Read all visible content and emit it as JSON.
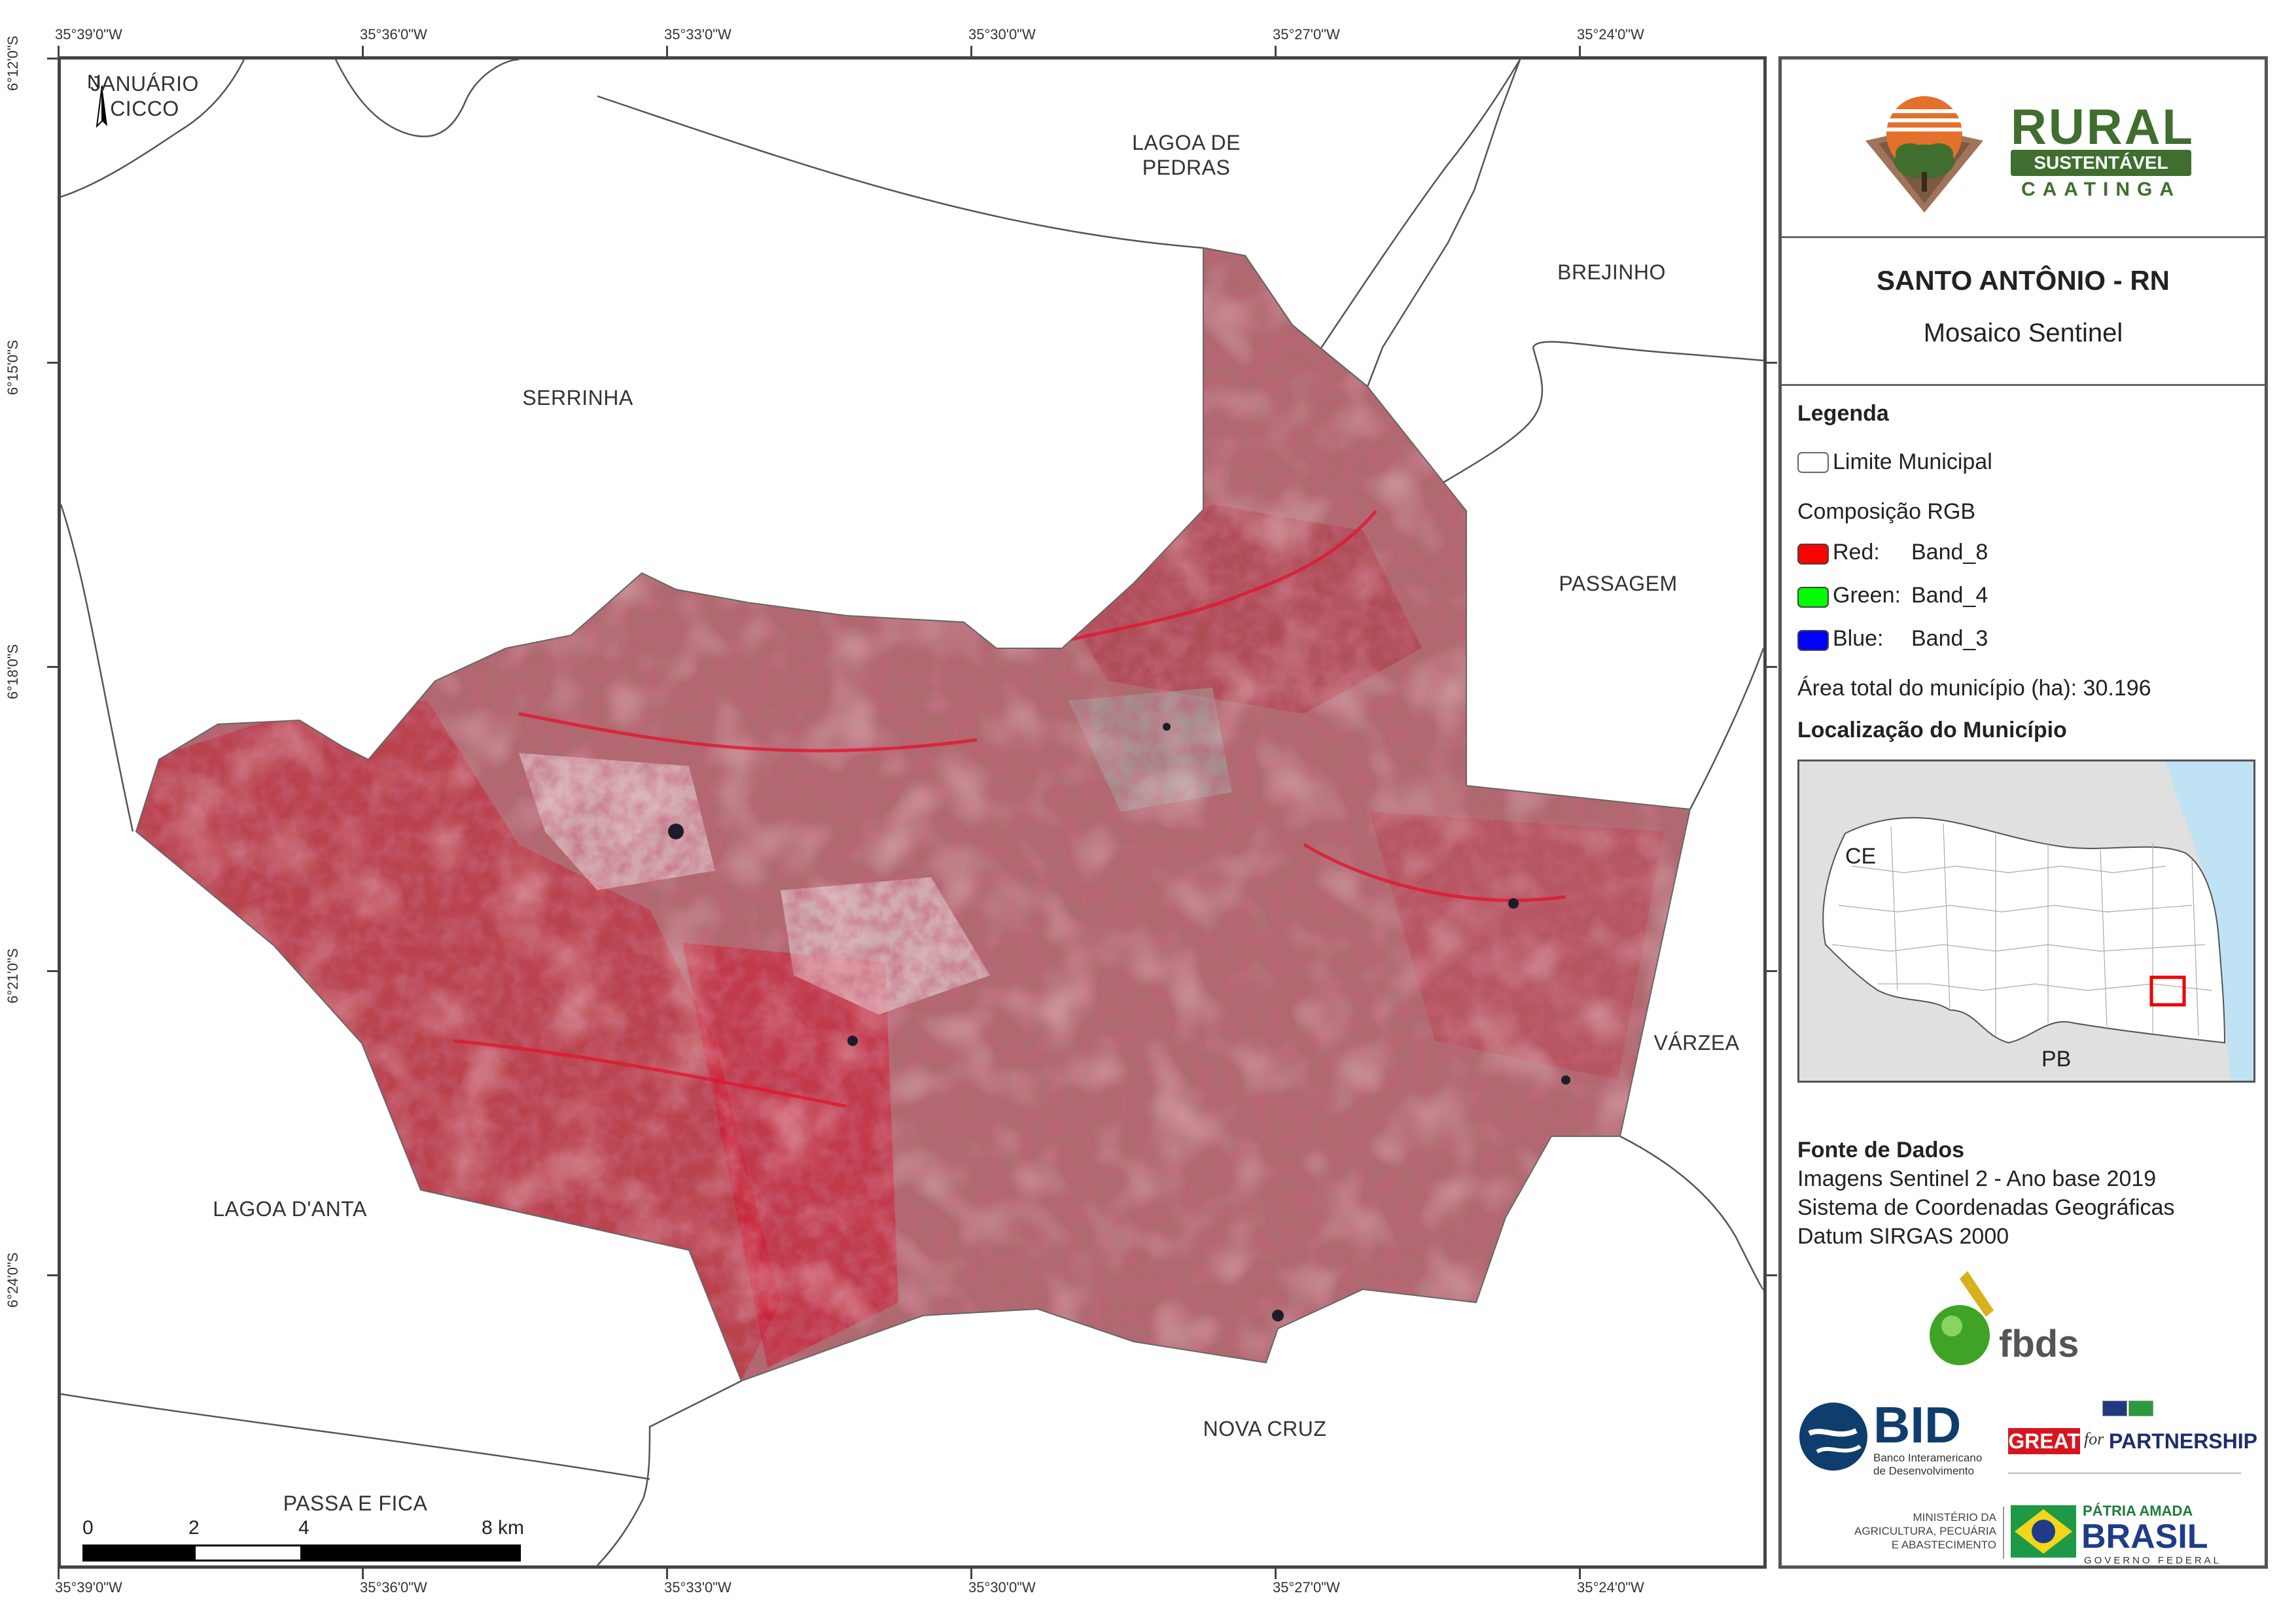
{
  "grid": {
    "top_longitudes": [
      "35°39'0\"W",
      "35°36'0\"W",
      "35°33'0\"W",
      "35°30'0\"W",
      "35°27'0\"W",
      "35°24'0\"W"
    ],
    "bottom_longitudes": [
      "35°39'0\"W",
      "35°36'0\"W",
      "35°33'0\"W",
      "35°30'0\"W",
      "35°27'0\"W",
      "35°24'0\"W"
    ],
    "left_latitudes": [
      "6°12'0\"S",
      "6°15'0\"S",
      "6°18'0\"S",
      "6°21'0\"S",
      "6°24'0\"S"
    ]
  },
  "neighbors": {
    "januario_cicco": "JANUÁRIO\nCICCO",
    "lagoa_de_pedras": "LAGOA DE\nPEDRAS",
    "brejinho": "BREJINHO",
    "serrinha": "SERRINHA",
    "passagem": "PASSAGEM",
    "varzea": "VÁRZEA",
    "lagoa_danta": "LAGOA D'ANTA",
    "nova_cruz": "NOVA CRUZ",
    "passa_e_fica": "PASSA E FICA"
  },
  "north_arrow": "N",
  "scale_bar": {
    "labels": [
      "0",
      "2",
      "4",
      "8 km"
    ]
  },
  "logo": {
    "rural": "RURAL",
    "sustentavel": "SUSTENTÁVEL",
    "caatinga": "CAATINGA"
  },
  "title": {
    "main": "SANTO ANTÔNIO - RN",
    "sub": "Mosaico Sentinel"
  },
  "legend": {
    "heading": "Legenda",
    "limit_label": "Limite Municipal",
    "rgb_heading": "Composição RGB",
    "bands": [
      {
        "channel": "Red:",
        "band": "Band_8",
        "color": "#ff0000"
      },
      {
        "channel": "Green:",
        "band": "Band_4",
        "color": "#00ff00"
      },
      {
        "channel": "Blue:",
        "band": "Band_3",
        "color": "#0000ff"
      }
    ],
    "area": "Área total do município (ha): 30.196",
    "location_heading": "Localização do Município",
    "inset_labels": {
      "ce": "CE",
      "pb": "PB"
    }
  },
  "sources": {
    "heading": "Fonte de Dados",
    "lines": [
      "Imagens Sentinel 2 - Ano base 2019",
      "Sistema de Coordenadas Geográficas",
      "Datum SIRGAS 2000"
    ]
  },
  "partners": {
    "fbds": "fbds",
    "bid": "BID",
    "bid_sub": "Banco Interamericano\nde Desenvolvimento",
    "great": "GREAT",
    "for": "for",
    "partnership": "PARTNERSHIP",
    "ministerio": "MINISTÉRIO DA\nAGRICULTURA, PECUÁRIA\nE ABASTECIMENTO",
    "patria": "PÁTRIA AMADA",
    "brasil": "BRASIL",
    "governo": "GOVERNO FEDERAL"
  }
}
